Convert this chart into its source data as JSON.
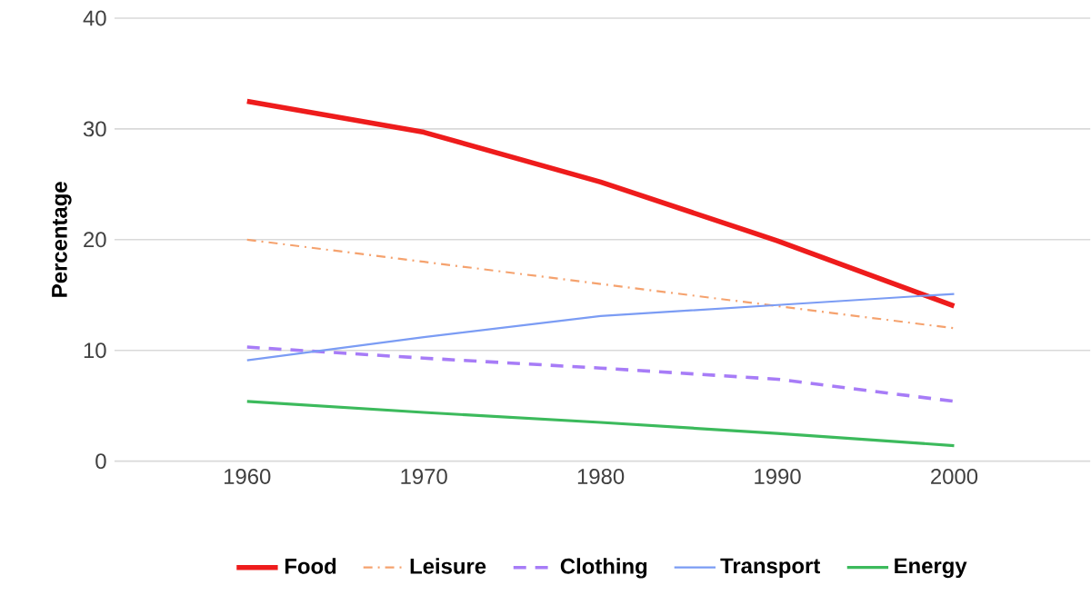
{
  "chart_data": {
    "type": "line",
    "ylabel": "Percentage",
    "x": [
      1960,
      1970,
      1980,
      1990,
      2000
    ],
    "xlim": [
      1952.5,
      2007.7
    ],
    "xticks": [
      1960,
      1970,
      1980,
      1990,
      2000
    ],
    "ylim": [
      0,
      40
    ],
    "yticks": [
      0,
      10,
      20,
      30,
      40
    ],
    "grid": "y",
    "legend": "bottom",
    "series": [
      {
        "name": "Food",
        "color": "#ee1c1c",
        "line_style": "solid",
        "values": [
          32.5,
          29.7,
          25.2,
          19.9,
          14.0
        ]
      },
      {
        "name": "Leisure",
        "color": "#f5a26e",
        "line_style": "dashdot",
        "values": [
          20,
          18,
          16,
          14,
          12
        ]
      },
      {
        "name": "Clothing",
        "color": "#a77cf7",
        "line_style": "dashed",
        "values": [
          10.3,
          9.3,
          8.4,
          7.4,
          5.4
        ]
      },
      {
        "name": "Transport",
        "color": "#7b9cf4",
        "line_style": "solid",
        "values": [
          9.1,
          11.2,
          13.1,
          14.1,
          15.1
        ]
      },
      {
        "name": "Energy",
        "color": "#3cba5c",
        "line_style": "solid",
        "values": [
          5.4,
          4.4,
          3.5,
          2.5,
          1.4
        ]
      }
    ]
  }
}
